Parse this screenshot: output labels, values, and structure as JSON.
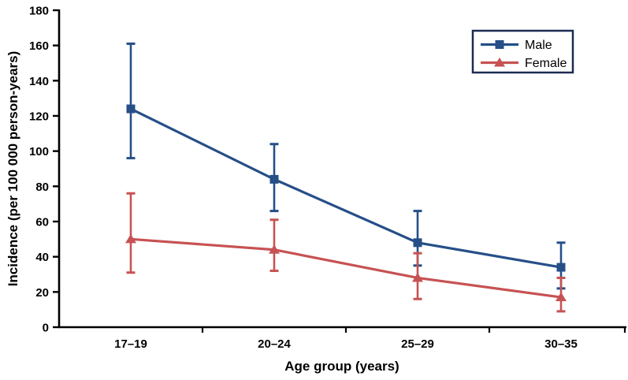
{
  "chart_data": {
    "type": "line",
    "title": "",
    "xlabel": "Age group (years)",
    "ylabel": "Incidence (per 100 000 person-years)",
    "categories": [
      "17–19",
      "20–24",
      "25–29",
      "30–35"
    ],
    "ylim": [
      0,
      180
    ],
    "yticks": [
      0,
      20,
      40,
      60,
      80,
      100,
      120,
      140,
      160,
      180
    ],
    "grid": false,
    "legend_position": "top-right",
    "axis_color": "#000000",
    "legend_border_color": "#1c2b52",
    "series": [
      {
        "name": "Male",
        "marker": "square",
        "color": "#264f88",
        "values": [
          124,
          84,
          48,
          34
        ],
        "ci_upper": [
          161,
          104,
          66,
          48
        ],
        "ci_lower": [
          96,
          66,
          35,
          22
        ]
      },
      {
        "name": "Female",
        "marker": "triangle",
        "color": "#c75253",
        "values": [
          50,
          44,
          28,
          17
        ],
        "ci_upper": [
          76,
          61,
          42,
          28
        ],
        "ci_lower": [
          31,
          32,
          16,
          9
        ]
      }
    ]
  }
}
